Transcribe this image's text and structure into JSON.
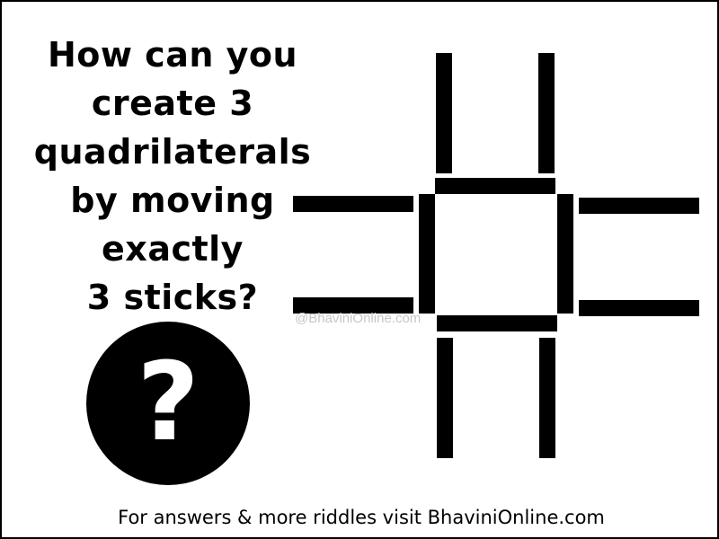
{
  "puzzle": {
    "question_lines": [
      "How can you",
      "create 3",
      "quadrilaterals",
      "by moving",
      "exactly",
      "3 sticks?"
    ],
    "icon_glyph": "?",
    "icon_name": "question-mark-icon"
  },
  "watermark": "@BhaviniOnline.com",
  "footer": "For answers & more riddles visit BhaviniOnline.com",
  "colors": {
    "ink": "#000000",
    "background": "#ffffff",
    "watermark": "#c7c7c7"
  }
}
